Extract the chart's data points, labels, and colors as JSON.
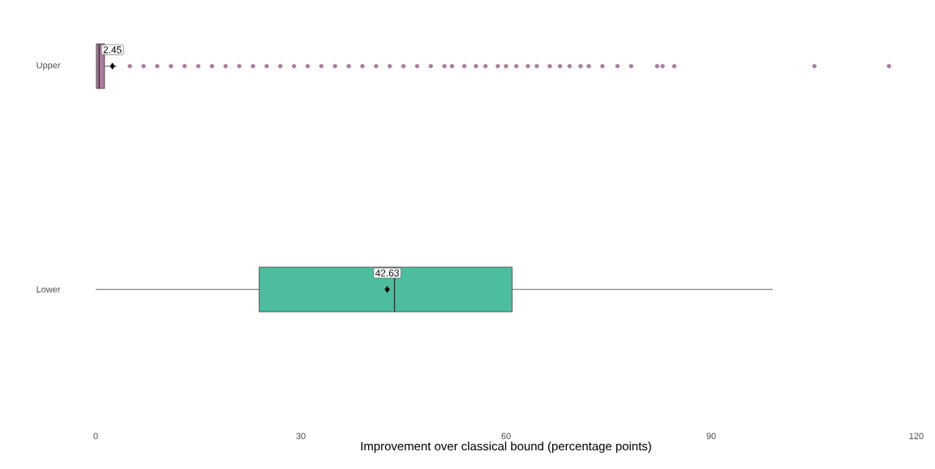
{
  "chart_data": {
    "type": "box",
    "orientation": "horizontal",
    "categories": [
      "Upper",
      "Lower"
    ],
    "colors": [
      "#b07a9e",
      "#4dbd9f"
    ],
    "boxes": [
      {
        "low": 0,
        "q1": 0.1,
        "median": 0.5,
        "q3": 1.3,
        "high": 3.1,
        "mean": 2.45,
        "outliers": [
          5,
          7,
          9,
          11,
          13,
          15,
          17,
          19,
          21,
          23,
          25,
          27,
          29,
          31,
          33,
          35,
          37,
          39,
          41,
          43,
          45,
          47,
          49,
          51,
          52.1,
          53.9,
          55.6,
          57.0,
          58.8,
          60.0,
          61.5,
          63.2,
          64.5,
          66.4,
          67.9,
          69.3,
          70.9,
          72.1,
          74.1,
          76.3,
          78.3,
          82.1,
          82.9,
          84.6,
          105.1,
          116.0
        ]
      },
      {
        "low": 0,
        "q1": 23.9,
        "median": 43.7,
        "q3": 60.9,
        "high": 99,
        "mean": 42.63
      }
    ],
    "annotations": [
      "2.45",
      "42.63"
    ],
    "xlabel": "Improvement over classical bound (percentage points)",
    "xlim": [
      0,
      120
    ],
    "xticks": [
      0,
      30,
      60,
      90,
      120
    ]
  }
}
